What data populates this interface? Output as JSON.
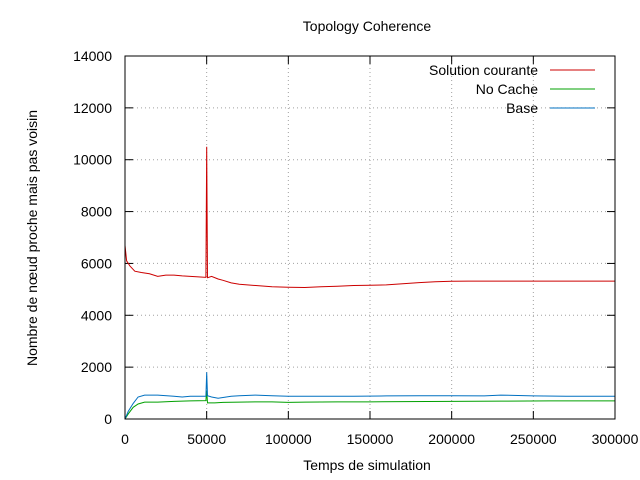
{
  "chart_data": {
    "type": "line",
    "title": "Topology Coherence",
    "xlabel": "Temps de simulation",
    "ylabel": "Nombre de nœud proche mais pas voisin",
    "xlim": [
      0,
      300000
    ],
    "ylim": [
      0,
      14000
    ],
    "xticks": [
      0,
      50000,
      100000,
      150000,
      200000,
      250000,
      300000
    ],
    "xtick_labels": [
      "0",
      "50000",
      "100000",
      "150000",
      "200000",
      "250000",
      "300000"
    ],
    "yticks": [
      0,
      2000,
      4000,
      6000,
      8000,
      10000,
      12000,
      14000
    ],
    "ytick_labels": [
      "0",
      "2000",
      "4000",
      "6000",
      "8000",
      "10000",
      "12000",
      "14000"
    ],
    "grid": true,
    "legend_position": "top-right",
    "series": [
      {
        "name": "Solution courante",
        "color": "#cc0000",
        "points": [
          [
            0,
            6700
          ],
          [
            1000,
            6100
          ],
          [
            3000,
            5900
          ],
          [
            6000,
            5700
          ],
          [
            10000,
            5650
          ],
          [
            15000,
            5600
          ],
          [
            20000,
            5500
          ],
          [
            25000,
            5550
          ],
          [
            30000,
            5550
          ],
          [
            35000,
            5520
          ],
          [
            40000,
            5500
          ],
          [
            45000,
            5480
          ],
          [
            49500,
            5460
          ],
          [
            50000,
            10500
          ],
          [
            50500,
            5450
          ],
          [
            53000,
            5500
          ],
          [
            57000,
            5400
          ],
          [
            60000,
            5350
          ],
          [
            65000,
            5250
          ],
          [
            70000,
            5200
          ],
          [
            80000,
            5150
          ],
          [
            90000,
            5100
          ],
          [
            100000,
            5080
          ],
          [
            110000,
            5070
          ],
          [
            120000,
            5100
          ],
          [
            130000,
            5120
          ],
          [
            140000,
            5150
          ],
          [
            150000,
            5160
          ],
          [
            160000,
            5170
          ],
          [
            170000,
            5220
          ],
          [
            180000,
            5260
          ],
          [
            190000,
            5290
          ],
          [
            200000,
            5310
          ],
          [
            210000,
            5320
          ],
          [
            220000,
            5320
          ],
          [
            240000,
            5320
          ],
          [
            260000,
            5320
          ],
          [
            280000,
            5320
          ],
          [
            300000,
            5320
          ]
        ]
      },
      {
        "name": "No Cache",
        "color": "#00a000",
        "points": [
          [
            0,
            0
          ],
          [
            2000,
            200
          ],
          [
            5000,
            450
          ],
          [
            8000,
            580
          ],
          [
            12000,
            650
          ],
          [
            20000,
            650
          ],
          [
            30000,
            680
          ],
          [
            40000,
            700
          ],
          [
            49500,
            710
          ],
          [
            50000,
            1100
          ],
          [
            50500,
            620
          ],
          [
            55000,
            620
          ],
          [
            60000,
            640
          ],
          [
            70000,
            650
          ],
          [
            80000,
            660
          ],
          [
            90000,
            660
          ],
          [
            100000,
            640
          ],
          [
            110000,
            650
          ],
          [
            130000,
            660
          ],
          [
            150000,
            660
          ],
          [
            170000,
            670
          ],
          [
            200000,
            680
          ],
          [
            230000,
            690
          ],
          [
            260000,
            700
          ],
          [
            300000,
            700
          ]
        ]
      },
      {
        "name": "Base",
        "color": "#0070c0",
        "points": [
          [
            0,
            0
          ],
          [
            2000,
            300
          ],
          [
            5000,
            600
          ],
          [
            8000,
            850
          ],
          [
            12000,
            920
          ],
          [
            20000,
            920
          ],
          [
            30000,
            880
          ],
          [
            35000,
            850
          ],
          [
            40000,
            880
          ],
          [
            45000,
            880
          ],
          [
            49500,
            880
          ],
          [
            50000,
            1800
          ],
          [
            50500,
            900
          ],
          [
            53000,
            850
          ],
          [
            57000,
            800
          ],
          [
            60000,
            830
          ],
          [
            65000,
            880
          ],
          [
            70000,
            900
          ],
          [
            80000,
            920
          ],
          [
            90000,
            900
          ],
          [
            100000,
            880
          ],
          [
            120000,
            880
          ],
          [
            140000,
            880
          ],
          [
            160000,
            890
          ],
          [
            180000,
            900
          ],
          [
            200000,
            900
          ],
          [
            220000,
            890
          ],
          [
            230000,
            920
          ],
          [
            250000,
            890
          ],
          [
            270000,
            880
          ],
          [
            300000,
            880
          ]
        ]
      }
    ]
  }
}
